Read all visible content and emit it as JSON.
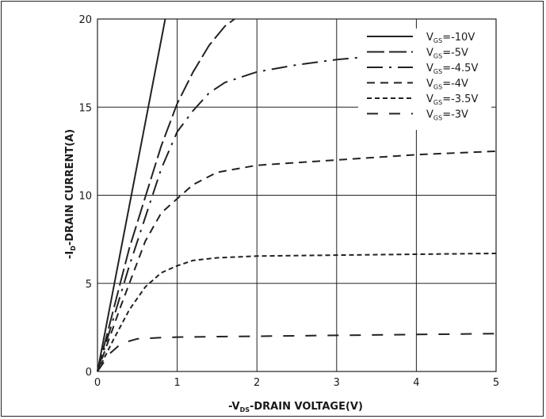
{
  "chart_data": {
    "type": "line",
    "xlabel": {
      "prefix": "-V",
      "sub": "DS",
      "suffix": "-DRAIN VOLTAGE(V)"
    },
    "ylabel": {
      "prefix": "-I",
      "sub": "D",
      "suffix": "-DRAIN CURRENT(A)"
    },
    "xlim": [
      0,
      5
    ],
    "ylim": [
      0,
      20
    ],
    "x_ticks": [
      "0",
      "1",
      "2",
      "3",
      "4",
      "5"
    ],
    "y_ticks": [
      "0",
      "5",
      "10",
      "15",
      "20"
    ],
    "grid": true,
    "legend_position": "top-right",
    "series": [
      {
        "name": "V_GS=-10V",
        "label_prefix": "V",
        "label_sub": "GS",
        "label_suffix": "=-10V",
        "dash": "solid",
        "x": [
          0,
          0.85
        ],
        "y": [
          0,
          20
        ]
      },
      {
        "name": "V_GS=-5V",
        "label_prefix": "V",
        "label_sub": "GS",
        "label_suffix": "=-5V",
        "dash": "long-dash",
        "x": [
          0,
          0.4,
          0.8,
          1.0,
          1.2,
          1.4,
          1.6,
          1.72
        ],
        "y": [
          0,
          7,
          12.8,
          15.2,
          17,
          18.5,
          19.6,
          20
        ]
      },
      {
        "name": "V_GS=-4.5V",
        "label_prefix": "V",
        "label_sub": "GS",
        "label_suffix": "=-4.5V",
        "dash": "long-dash-dot",
        "x": [
          0,
          0.4,
          0.8,
          1.0,
          1.2,
          1.4,
          1.6,
          2.0,
          2.5,
          3.0,
          3.5
        ],
        "y": [
          0,
          6,
          11.5,
          13.6,
          14.8,
          15.8,
          16.4,
          17,
          17.4,
          17.7,
          17.9
        ]
      },
      {
        "name": "V_GS=-4V",
        "label_prefix": "V",
        "label_sub": "GS",
        "label_suffix": "=-4V",
        "dash": "medium-dash",
        "x": [
          0,
          0.3,
          0.6,
          0.8,
          1.0,
          1.2,
          1.5,
          2.0,
          3.0,
          4.0,
          5.0
        ],
        "y": [
          0,
          3.8,
          7.4,
          9,
          9.8,
          10.6,
          11.3,
          11.7,
          12,
          12.3,
          12.5
        ]
      },
      {
        "name": "V_GS=-3.5V",
        "label_prefix": "V",
        "label_sub": "GS",
        "label_suffix": "=-3.5V",
        "dash": "short-dash",
        "x": [
          0,
          0.2,
          0.4,
          0.6,
          0.8,
          1.0,
          1.2,
          1.5,
          2.0,
          3.0,
          4.0,
          5.0
        ],
        "y": [
          0,
          1.8,
          3.5,
          4.8,
          5.6,
          6,
          6.3,
          6.45,
          6.55,
          6.6,
          6.65,
          6.7
        ]
      },
      {
        "name": "V_GS=-3V",
        "label_prefix": "V",
        "label_sub": "GS",
        "label_suffix": "=-3V",
        "dash": "sparse-dash",
        "x": [
          0,
          0.15,
          0.3,
          0.5,
          0.8,
          1.0,
          2.0,
          3.0,
          4.0,
          5.0
        ],
        "y": [
          0,
          1.0,
          1.6,
          1.85,
          1.92,
          1.95,
          2.0,
          2.05,
          2.1,
          2.15
        ]
      }
    ]
  }
}
